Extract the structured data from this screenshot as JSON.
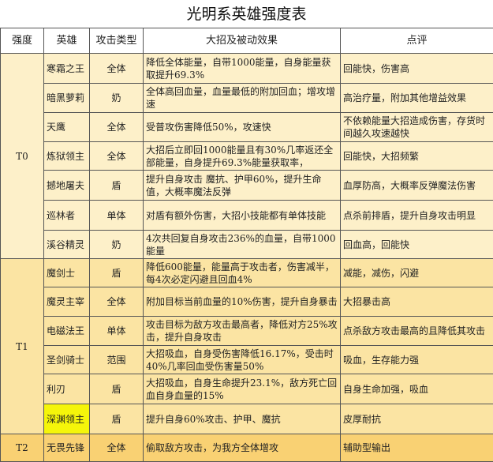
{
  "title": "光明系英雄强度表",
  "headers": [
    "强度",
    "英雄",
    "攻击类型",
    "大招及被动效果",
    "点评"
  ],
  "tiers": [
    {
      "tier": "T0",
      "heroes": [
        {
          "name": "寒霜之王",
          "type": "全体",
          "effect": "降低全体能量，自带1000能量，自身能量获取提升69.3%",
          "comment": "回能快，伤害高"
        },
        {
          "name": "暗黑萝莉",
          "type": "奶",
          "effect": "全体高回血量，血量最低的附加回血；增攻增速",
          "comment": "高治疗量，附加其他增益效果"
        },
        {
          "name": "天鹰",
          "type": "全体",
          "effect": "受普攻伤害降低50%，攻速快",
          "comment": "不依赖能量大招造成伤害，存货时间越久攻速越快"
        },
        {
          "name": "炼狱领主",
          "type": "全体",
          "effect": "大招后立即回1000能量且有30%几率返还全部能量，自身提升69.3%能量获取率，",
          "comment": "回能快，大招频繁"
        },
        {
          "name": "撼地屠夫",
          "type": "盾",
          "effect": "提升自身攻击 魔抗、护甲60%，提升生命值，大概率魔法反弹",
          "comment": "血厚防高，大概率反弹魔法伤害"
        },
        {
          "name": "巡林者",
          "type": "单体",
          "effect": "对盾有额外伤害，大招小技能都有单体技能",
          "comment": "点杀前排盾，提升自身攻击明显"
        },
        {
          "name": "溪谷精灵",
          "type": "奶",
          "effect": "4次共回复自身攻击236%的血量，自带1000能量",
          "comment": "回血高，回能快"
        }
      ]
    },
    {
      "tier": "T1",
      "heroes": [
        {
          "name": "魔剑士",
          "type": "盾",
          "effect": "降低600能量，能量高于攻击者，伤害减半，每4次必定闪避且回血4%",
          "comment": "减能，减伤，闪避"
        },
        {
          "name": "魔灵主宰",
          "type": "全体",
          "effect": "附加目标当前血量的10%伤害，提升自身暴击",
          "comment": "大招暴击高"
        },
        {
          "name": "电磁法王",
          "type": "单体",
          "effect": "攻击目标为敌方攻击最高者，降低对方25%攻击，提升自身攻击",
          "comment": "点杀敌方攻击最高的且降低其攻击"
        },
        {
          "name": "圣剑骑士",
          "type": "范围",
          "effect": "大招吸血，自身受伤害降低16.17%，受击时40%几率回血受伤害量50%",
          "comment": "吸血，生存能力强"
        },
        {
          "name": "利刃",
          "type": "盾",
          "effect": "大招吸血，自身生命提升23.1%，敌方死亡回血自身血量的15%",
          "comment": "自身生命加强，吸血"
        },
        {
          "name": "深渊领主",
          "type": "盾",
          "effect": "提升自身60%攻击、护甲、魔抗",
          "comment": "皮厚耐抗",
          "highlight": "#f5f50a"
        }
      ]
    },
    {
      "tier": "T2",
      "heroes": [
        {
          "name": "无畏先锋",
          "type": "全体",
          "effect": "偷取敌方攻击，为我方全体增攻",
          "comment": "辅助型输出"
        }
      ]
    }
  ],
  "colors": {
    "T0": "#fdf0c9",
    "T1": "#fbe4a3",
    "T2": "#f9d173",
    "highlight": "#f5f50a"
  }
}
